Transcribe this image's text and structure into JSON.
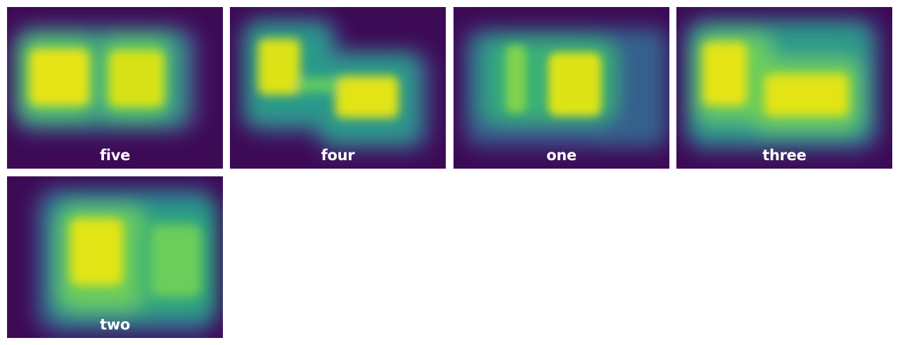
{
  "gallery": {
    "tiles": [
      {
        "label": "five"
      },
      {
        "label": "four"
      },
      {
        "label": "one"
      },
      {
        "label": "three"
      },
      {
        "label": "two"
      }
    ]
  },
  "colors": {
    "background": "#3d0a56",
    "low": "#44155f",
    "mid": "#2f7f8e",
    "high": "#f2e51d",
    "label_text": "#ffffff"
  }
}
